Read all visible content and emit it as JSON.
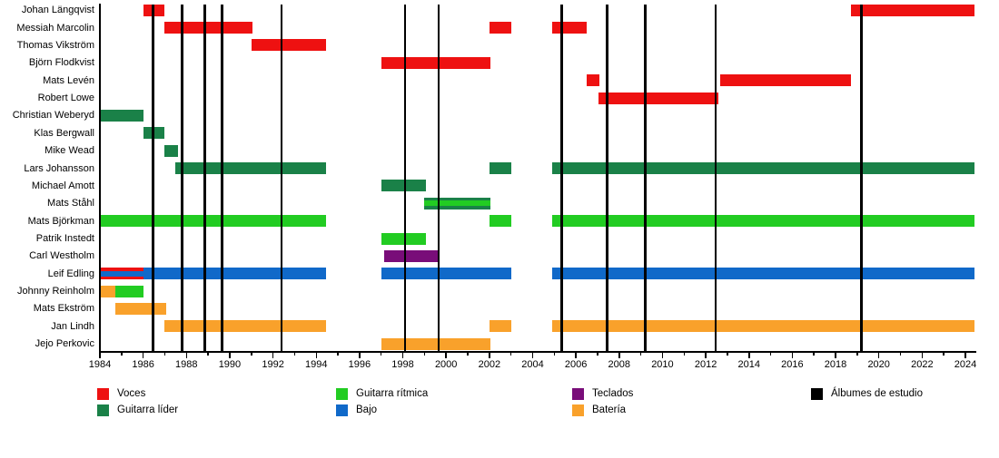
{
  "chart_data": {
    "type": "timeline",
    "title": "",
    "x_axis": {
      "min": 1984,
      "max": 2024.5,
      "tick_labels": [
        "1984",
        "1986",
        "1988",
        "1990",
        "1992",
        "1994",
        "1996",
        "1998",
        "2000",
        "2002",
        "2004",
        "2006",
        "2008",
        "2010",
        "2012",
        "2014",
        "2016",
        "2018",
        "2020",
        "2022",
        "2024"
      ],
      "minor_tick_every_years": 1,
      "grid": false
    },
    "role_colors": {
      "voces": "#ee1111",
      "guitarra_lider": "#1a8148",
      "guitarra_ritmica": "#22cc22",
      "bajo": "#1069c9",
      "teclados": "#790d79",
      "bateria": "#f9a12b",
      "albumes": "#000000"
    },
    "members": [
      {
        "name": "Johan Längqvist",
        "segments": [
          {
            "roles": [
              "voces"
            ],
            "start": 1986.0,
            "end": 1987.0
          },
          {
            "roles": [
              "voces"
            ],
            "start": 2018.7,
            "end": 2024.4
          }
        ]
      },
      {
        "name": "Messiah Marcolin",
        "segments": [
          {
            "roles": [
              "voces"
            ],
            "start": 1987.0,
            "end": 1991.05
          },
          {
            "roles": [
              "voces"
            ],
            "start": 2002.0,
            "end": 2003.0
          },
          {
            "roles": [
              "voces"
            ],
            "start": 2004.9,
            "end": 2006.5
          }
        ]
      },
      {
        "name": "Thomas Vikström",
        "segments": [
          {
            "roles": [
              "voces"
            ],
            "start": 1991.0,
            "end": 1994.45
          }
        ]
      },
      {
        "name": "Björn Flodkvist",
        "segments": [
          {
            "roles": [
              "voces"
            ],
            "start": 1997.0,
            "end": 2002.05
          }
        ]
      },
      {
        "name": "Mats Levén",
        "segments": [
          {
            "roles": [
              "voces"
            ],
            "start": 2006.5,
            "end": 2007.1
          },
          {
            "roles": [
              "voces"
            ],
            "start": 2012.65,
            "end": 2018.7
          }
        ]
      },
      {
        "name": "Robert Lowe",
        "segments": [
          {
            "roles": [
              "voces"
            ],
            "start": 2007.05,
            "end": 2012.6
          }
        ]
      },
      {
        "name": "Christian Weberyd",
        "segments": [
          {
            "roles": [
              "guitarra_lider"
            ],
            "start": 1984.05,
            "end": 1986.0
          }
        ]
      },
      {
        "name": "Klas Bergwall",
        "segments": [
          {
            "roles": [
              "guitarra_lider"
            ],
            "start": 1986.0,
            "end": 1987.0
          }
        ]
      },
      {
        "name": "Mike Wead",
        "segments": [
          {
            "roles": [
              "guitarra_lider"
            ],
            "start": 1987.0,
            "end": 1987.6
          }
        ]
      },
      {
        "name": "Lars Johansson",
        "segments": [
          {
            "roles": [
              "guitarra_lider"
            ],
            "start": 1987.5,
            "end": 1994.45
          },
          {
            "roles": [
              "guitarra_lider"
            ],
            "start": 2002.0,
            "end": 2003.0
          },
          {
            "roles": [
              "guitarra_lider"
            ],
            "start": 2004.9,
            "end": 2024.4
          }
        ]
      },
      {
        "name": "Michael Amott",
        "segments": [
          {
            "roles": [
              "guitarra_lider"
            ],
            "start": 1997.0,
            "end": 1999.05
          }
        ]
      },
      {
        "name": "Mats Ståhl",
        "segments": [
          {
            "roles": [
              "guitarra_lider",
              "guitarra_ritmica"
            ],
            "start": 1999.0,
            "end": 2002.05
          }
        ]
      },
      {
        "name": "Mats Björkman",
        "segments": [
          {
            "roles": [
              "guitarra_ritmica"
            ],
            "start": 1984.05,
            "end": 1994.45
          },
          {
            "roles": [
              "guitarra_ritmica"
            ],
            "start": 2002.0,
            "end": 2003.0
          },
          {
            "roles": [
              "guitarra_ritmica"
            ],
            "start": 2004.9,
            "end": 2024.4
          }
        ]
      },
      {
        "name": "Patrik Instedt",
        "segments": [
          {
            "roles": [
              "guitarra_ritmica"
            ],
            "start": 1997.0,
            "end": 1999.05
          }
        ]
      },
      {
        "name": "Carl Westholm",
        "segments": [
          {
            "roles": [
              "teclados"
            ],
            "start": 1997.15,
            "end": 1999.7
          }
        ]
      },
      {
        "name": "Leif Edling",
        "segments": [
          {
            "roles": [
              "voces",
              "bajo"
            ],
            "start": 1984.05,
            "end": 1986.0
          },
          {
            "roles": [
              "bajo"
            ],
            "start": 1986.0,
            "end": 1994.45
          },
          {
            "roles": [
              "bajo"
            ],
            "start": 1997.0,
            "end": 2003.0
          },
          {
            "roles": [
              "bajo"
            ],
            "start": 2004.9,
            "end": 2024.4
          }
        ]
      },
      {
        "name": "Johnny Reinholm",
        "segments": [
          {
            "roles": [
              "bateria"
            ],
            "start": 1984.05,
            "end": 1984.7
          },
          {
            "roles": [
              "guitarra_ritmica"
            ],
            "start": 1984.7,
            "end": 1986.0
          }
        ]
      },
      {
        "name": "Mats Ekström",
        "segments": [
          {
            "roles": [
              "bateria"
            ],
            "start": 1984.7,
            "end": 1987.05
          }
        ]
      },
      {
        "name": "Jan Lindh",
        "segments": [
          {
            "roles": [
              "bateria"
            ],
            "start": 1987.0,
            "end": 1994.45
          },
          {
            "roles": [
              "bateria"
            ],
            "start": 2002.0,
            "end": 2003.0
          },
          {
            "roles": [
              "bateria"
            ],
            "start": 2004.9,
            "end": 2024.4
          }
        ]
      },
      {
        "name": "Jejo Perkovic",
        "segments": [
          {
            "roles": [
              "bateria"
            ],
            "start": 1997.0,
            "end": 2002.05
          }
        ]
      }
    ],
    "album_lines": {
      "label": "Álbumes de estudio",
      "years": [
        1986.45,
        1987.8,
        1988.85,
        1989.65,
        1992.4,
        1998.1,
        1999.65,
        2005.35,
        2007.45,
        2009.2,
        2012.45,
        2019.2
      ]
    },
    "legend_columns": [
      [
        {
          "label": "Voces",
          "role": "voces"
        },
        {
          "label": "Guitarra líder",
          "role": "guitarra_lider"
        }
      ],
      [
        {
          "label": "Guitarra rítmica",
          "role": "guitarra_ritmica"
        },
        {
          "label": "Bajo",
          "role": "bajo"
        }
      ],
      [
        {
          "label": "Teclados",
          "role": "teclados"
        },
        {
          "label": "Batería",
          "role": "bateria"
        }
      ],
      [
        {
          "label": "Álbumes de estudio",
          "role": "albumes"
        }
      ]
    ]
  }
}
